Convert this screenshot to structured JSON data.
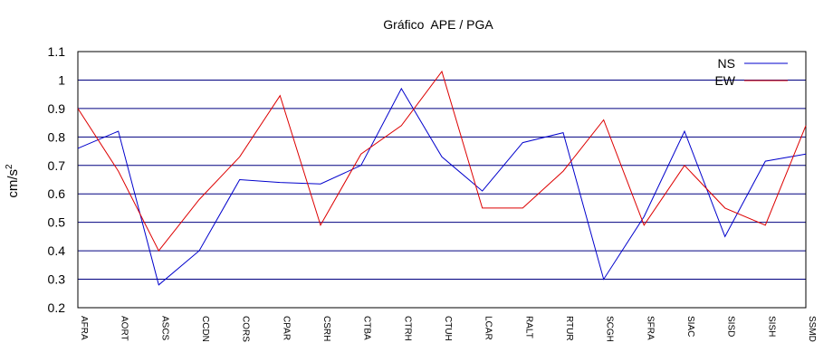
{
  "chart_data": {
    "type": "line",
    "title": "Gráfico  APE / PGA",
    "xlabel": "",
    "ylabel": "cm/s",
    "ylabel_superscript": "2",
    "ylim": [
      0.2,
      1.1
    ],
    "yticks": [
      "0.2",
      "0.3",
      "0.4",
      "0.5",
      "0.6",
      "0.7",
      "0.8",
      "0.9",
      "1",
      "1.1"
    ],
    "grid": "horizontal",
    "legend_position": "top-right",
    "categories": [
      "AFRA",
      "AORT",
      "ASCS",
      "CCDN",
      "CORS",
      "CPAR",
      "CSRH",
      "CTBA",
      "CTRH",
      "CTUH",
      "LCAR",
      "RALT",
      "RTUR",
      "SCGH",
      "SFRA",
      "SIAC",
      "SISD",
      "SISH",
      "SSMD"
    ],
    "series": [
      {
        "name": "NS",
        "color": "#0000cc",
        "values": [
          0.76,
          0.82,
          0.28,
          0.4,
          0.65,
          0.64,
          0.635,
          0.7,
          0.97,
          0.73,
          0.61,
          0.78,
          0.815,
          0.3,
          0.52,
          0.82,
          0.45,
          0.715,
          0.74
        ]
      },
      {
        "name": "EW",
        "color": "#dd0000",
        "values": [
          0.9,
          0.68,
          0.4,
          0.58,
          0.73,
          0.945,
          0.49,
          0.74,
          0.84,
          1.03,
          0.55,
          0.55,
          0.68,
          0.86,
          0.49,
          0.7,
          0.55,
          0.49,
          0.84
        ]
      }
    ]
  }
}
